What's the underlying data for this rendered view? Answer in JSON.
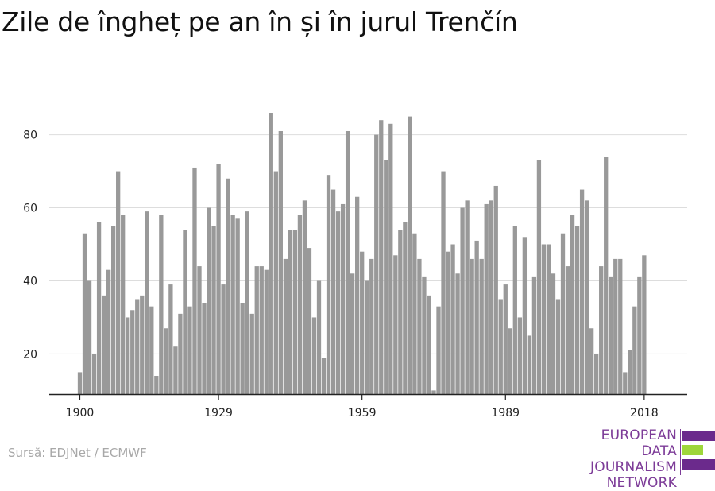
{
  "title": "Zile de îngheț pe an în și în jurul Trenčín",
  "source": "Sursă: EDJNet / ECMWF",
  "logo": {
    "lines": [
      "EUROPEAN",
      "DATA JOURNALISM",
      "NETWORK"
    ],
    "colors": [
      "#6b2a8c",
      "#9ed63a",
      "#6b2a8c"
    ]
  },
  "colors": {
    "bar": "#999999",
    "grid": "#dddddd",
    "axis": "#222222"
  },
  "chart_data": {
    "type": "bar",
    "x_start": 1900,
    "xticks": [
      1900,
      1929,
      1959,
      1989,
      2018
    ],
    "yticks": [
      20,
      40,
      60,
      80
    ],
    "ylim": [
      9,
      88
    ],
    "grid": true,
    "values": [
      15,
      53,
      40,
      20,
      56,
      36,
      43,
      55,
      70,
      58,
      30,
      32,
      35,
      36,
      59,
      33,
      14,
      58,
      27,
      39,
      22,
      31,
      54,
      33,
      71,
      44,
      34,
      60,
      55,
      72,
      39,
      68,
      58,
      57,
      34,
      59,
      31,
      44,
      44,
      43,
      86,
      70,
      81,
      46,
      54,
      54,
      58,
      62,
      49,
      30,
      40,
      19,
      69,
      65,
      59,
      61,
      81,
      42,
      63,
      48,
      40,
      46,
      80,
      84,
      73,
      83,
      47,
      54,
      56,
      85,
      53,
      46,
      41,
      36,
      10,
      33,
      70,
      48,
      50,
      42,
      60,
      62,
      46,
      51,
      46,
      61,
      62,
      66,
      35,
      39,
      27,
      55,
      30,
      52,
      25,
      41,
      73,
      50,
      50,
      42,
      35,
      53,
      44,
      58,
      55,
      65,
      62,
      27,
      20,
      44,
      74,
      41,
      46,
      46,
      15,
      21,
      33,
      41,
      47
    ]
  }
}
